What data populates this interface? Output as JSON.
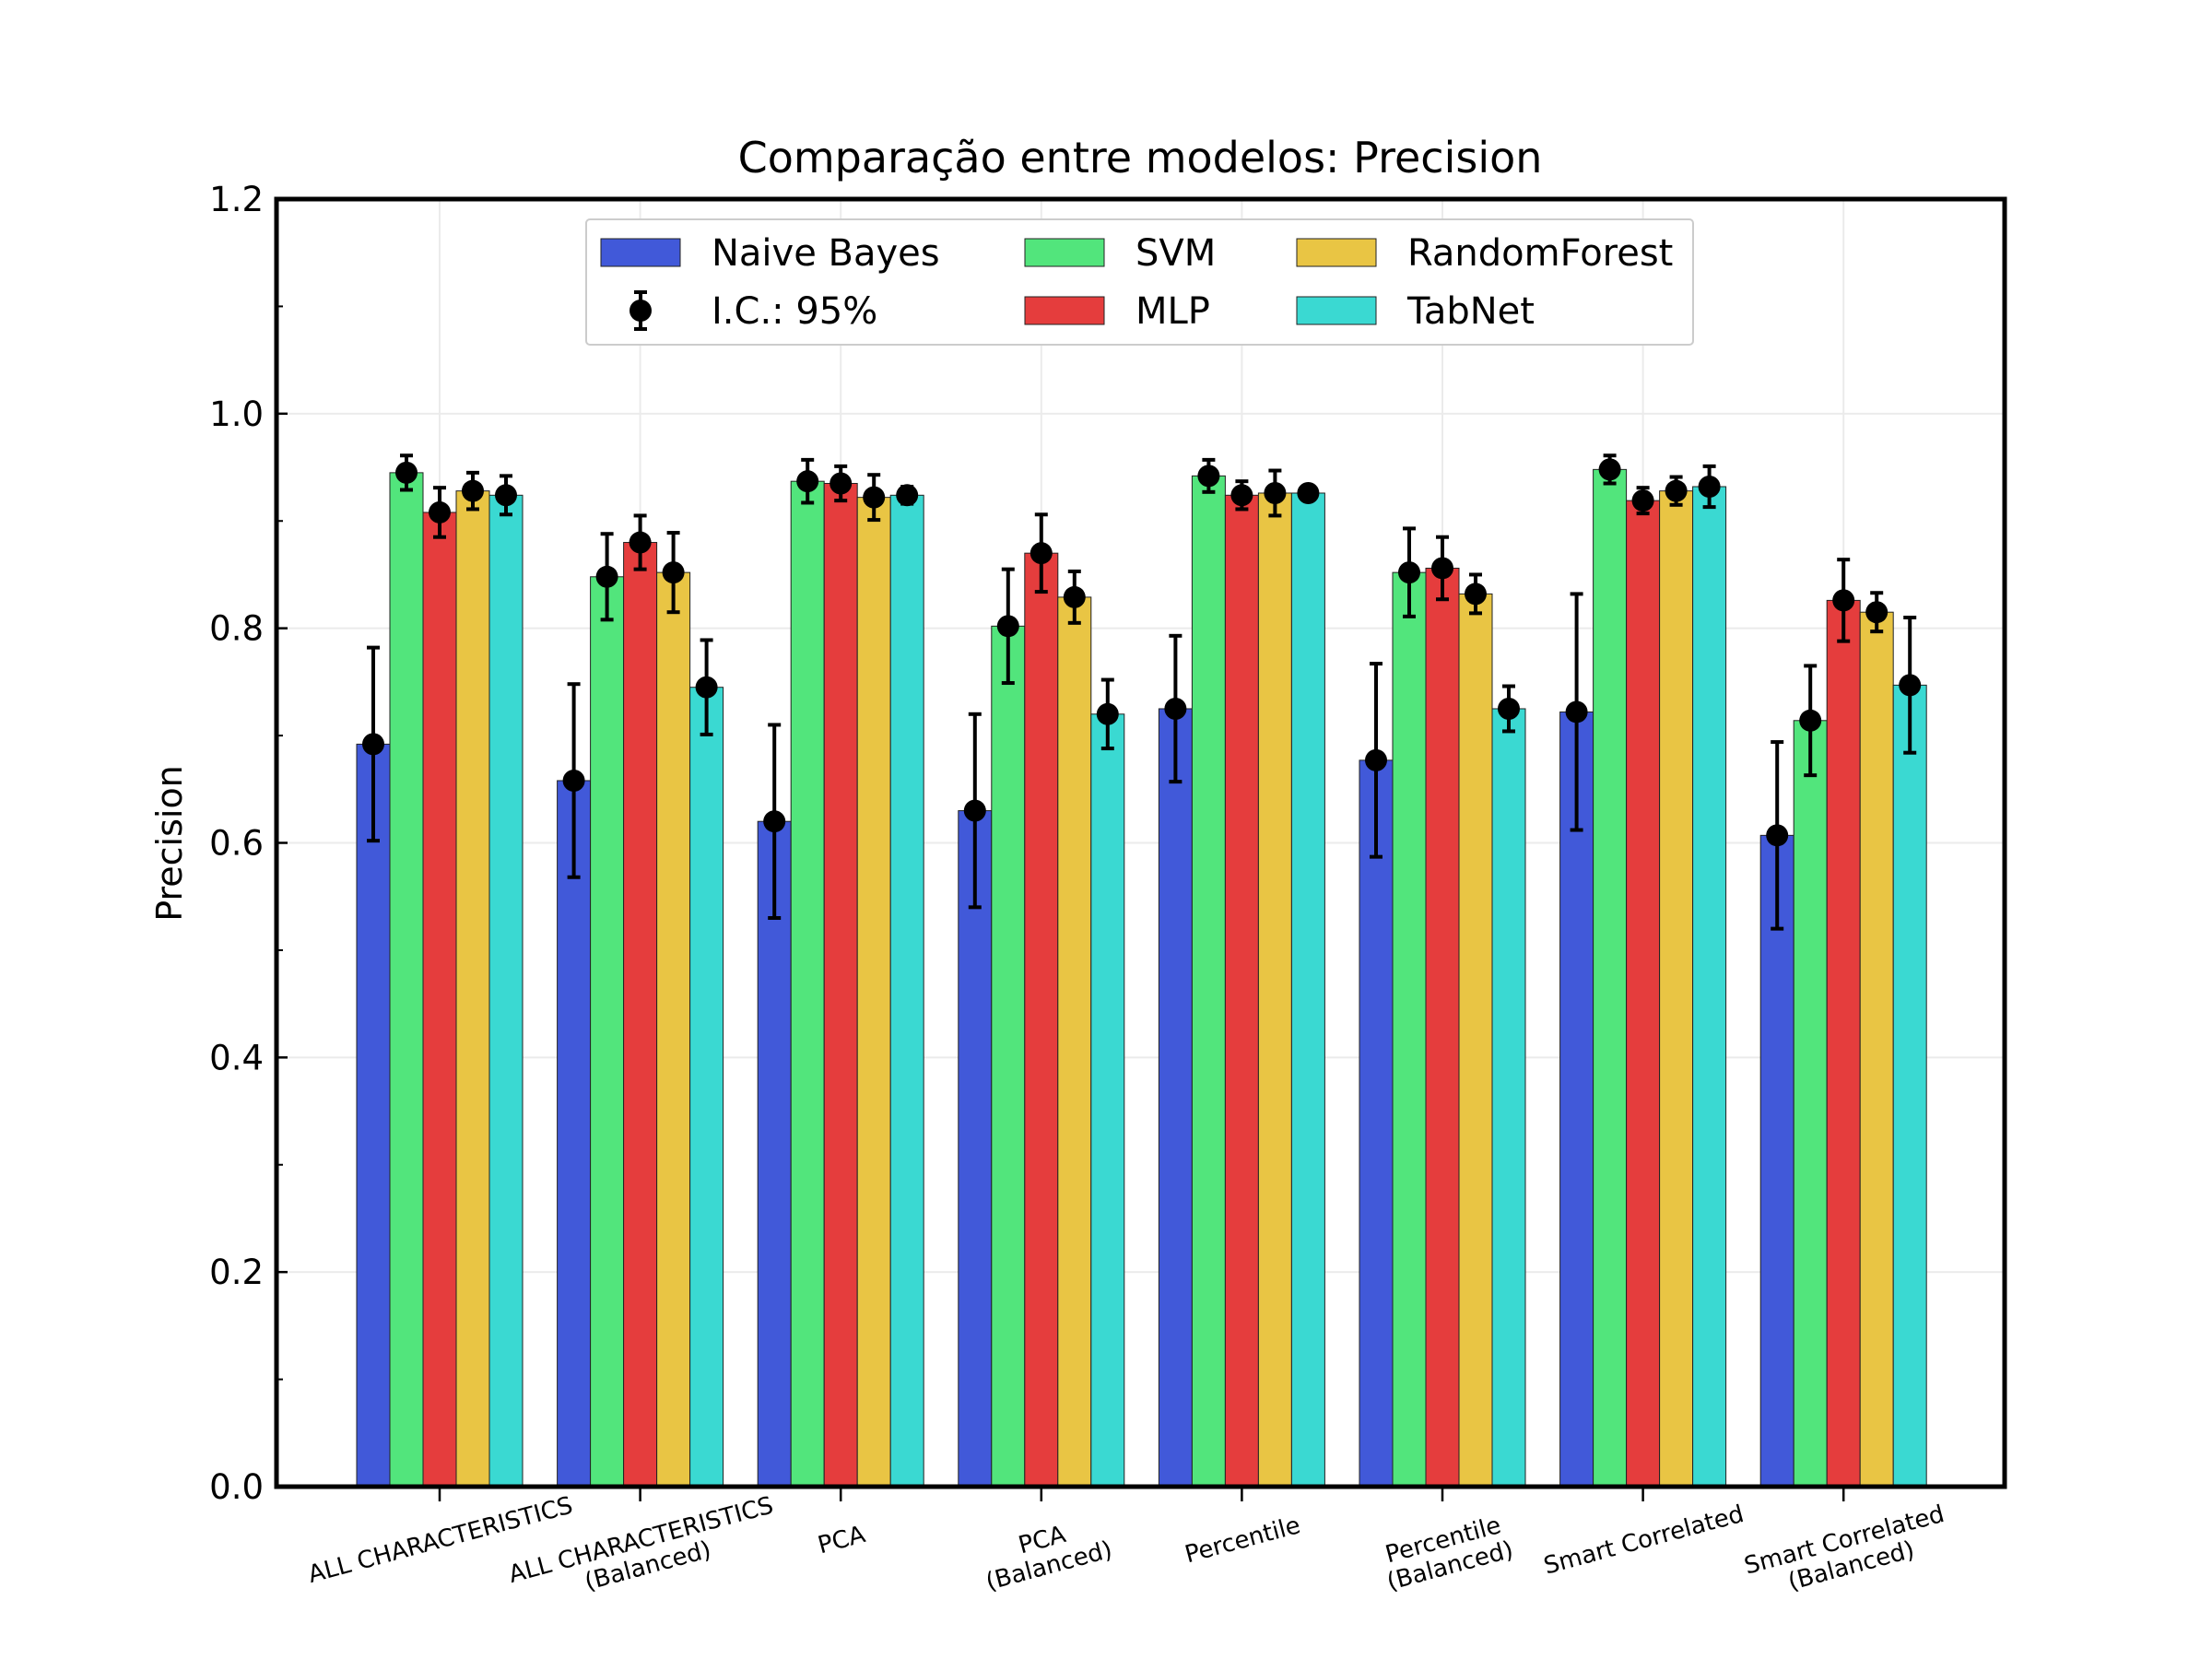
{
  "chart_data": {
    "type": "bar",
    "title": "Comparação entre modelos: Precision",
    "xlabel": "",
    "ylabel": "Precision",
    "ylim": [
      0,
      1.2
    ],
    "yticks": [
      "0.0",
      "0.2",
      "0.4",
      "0.6",
      "0.8",
      "1.0",
      "1.2"
    ],
    "grid": true,
    "legend_position": "top-center",
    "error_label": "I.C.: 95%",
    "categories": [
      [
        "ALL CHARACTERISTICS"
      ],
      [
        "ALL CHARACTERISTICS",
        "(Balanced)"
      ],
      [
        "PCA"
      ],
      [
        "PCA",
        "(Balanced)"
      ],
      [
        "Percentile"
      ],
      [
        "Percentile",
        "(Balanced)"
      ],
      [
        "Smart Correlated"
      ],
      [
        "Smart Correlated",
        "(Balanced)"
      ]
    ],
    "series": [
      {
        "name": "Naive Bayes",
        "color": "#4159d9",
        "values": [
          0.692,
          0.658,
          0.62,
          0.63,
          0.725,
          0.677,
          0.722,
          0.607
        ],
        "err": [
          0.09,
          0.09,
          0.09,
          0.09,
          0.068,
          0.09,
          0.11,
          0.087
        ]
      },
      {
        "name": "SVM",
        "color": "#52e57c",
        "values": [
          0.945,
          0.848,
          0.937,
          0.802,
          0.942,
          0.852,
          0.948,
          0.714
        ],
        "err": [
          0.016,
          0.04,
          0.02,
          0.053,
          0.015,
          0.041,
          0.013,
          0.051
        ]
      },
      {
        "name": "MLP",
        "color": "#e53d3d",
        "values": [
          0.908,
          0.88,
          0.935,
          0.87,
          0.924,
          0.856,
          0.919,
          0.826
        ],
        "err": [
          0.023,
          0.025,
          0.016,
          0.036,
          0.013,
          0.029,
          0.012,
          0.038
        ]
      },
      {
        "name": "RandomForest",
        "color": "#e9c544",
        "values": [
          0.928,
          0.852,
          0.922,
          0.829,
          0.926,
          0.832,
          0.928,
          0.815
        ],
        "err": [
          0.017,
          0.037,
          0.021,
          0.024,
          0.021,
          0.018,
          0.013,
          0.018
        ]
      },
      {
        "name": "TabNet",
        "color": "#3ad9d2",
        "values": [
          0.924,
          0.745,
          0.924,
          0.72,
          0.926,
          0.725,
          0.932,
          0.747
        ],
        "err": [
          0.018,
          0.044,
          0.008,
          0.032,
          0.004,
          0.021,
          0.019,
          0.063
        ]
      }
    ]
  }
}
